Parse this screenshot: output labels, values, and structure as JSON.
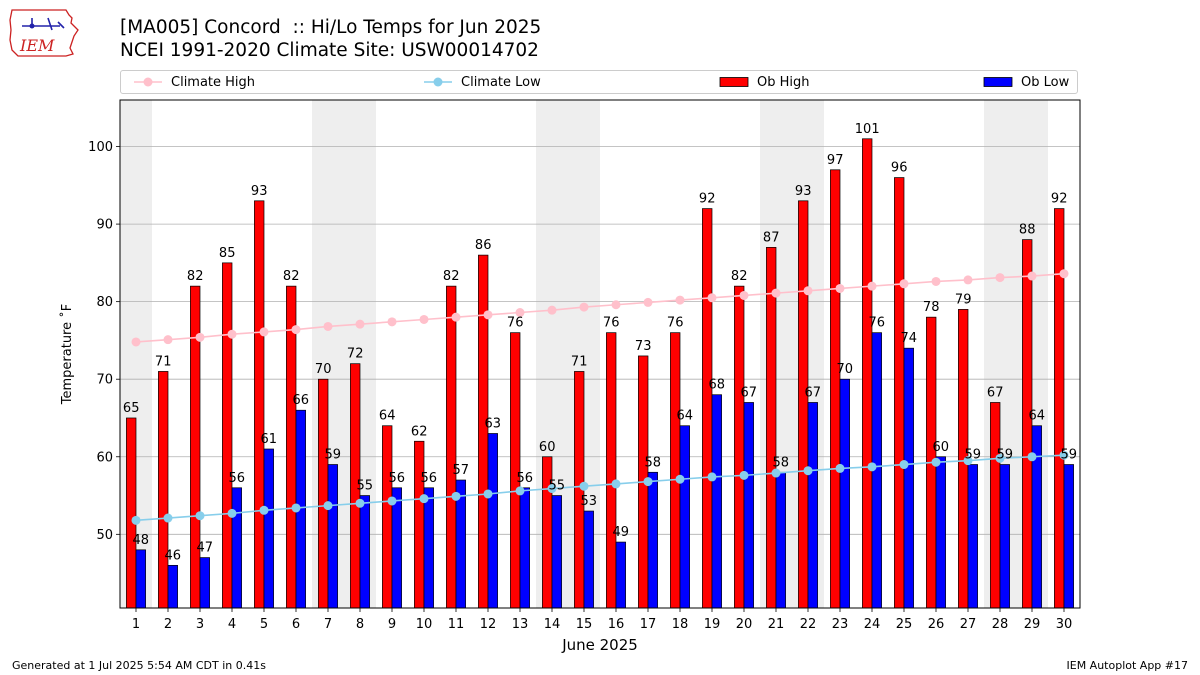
{
  "header": {
    "title_line1": "[MA005] Concord  :: Hi/Lo Temps for Jun 2025",
    "title_line2": "NCEI 1991-2020 Climate Site: USW00014702"
  },
  "logo": {
    "text": "IEM",
    "icon": "iem-iowa-logo"
  },
  "footer": {
    "left": "Generated at 1 Jul 2025 5:54 AM CDT in 0.41s",
    "right": "IEM Autoplot App #17"
  },
  "chart_data": {
    "type": "bar",
    "title": "[MA005] Concord  :: Hi/Lo Temps for Jun 2025",
    "subtitle": "NCEI 1991-2020 Climate Site: USW00014702",
    "xlabel": "June 2025",
    "ylabel": "Temperature ˚F",
    "ylim": [
      40.5,
      106
    ],
    "yticks": [
      50,
      60,
      70,
      80,
      90,
      100
    ],
    "categories": [
      "1",
      "2",
      "3",
      "4",
      "5",
      "6",
      "7",
      "8",
      "9",
      "10",
      "11",
      "12",
      "13",
      "14",
      "15",
      "16",
      "17",
      "18",
      "19",
      "20",
      "21",
      "22",
      "23",
      "24",
      "25",
      "26",
      "27",
      "28",
      "29",
      "30"
    ],
    "grid": true,
    "legend_position": "top",
    "weekend_shading_days": [
      1,
      7,
      8,
      14,
      15,
      21,
      22,
      28,
      29
    ],
    "series": [
      {
        "name": "Ob High",
        "kind": "bar",
        "color": "#ff0000",
        "values": [
          65,
          71,
          82,
          85,
          93,
          82,
          70,
          72,
          64,
          62,
          82,
          86,
          76,
          60,
          71,
          76,
          73,
          76,
          92,
          82,
          87,
          93,
          97,
          101,
          96,
          78,
          79,
          67,
          88,
          92
        ],
        "labels": [
          "65",
          "71",
          "82",
          "85",
          "93",
          "82",
          "70",
          "72",
          "64",
          "62",
          "82",
          "86",
          "76",
          "60",
          "71",
          "76",
          "73",
          "76",
          "92",
          "82",
          "87",
          "93",
          "97",
          "101",
          "96",
          "78",
          "79",
          "67",
          "88",
          "92"
        ]
      },
      {
        "name": "Ob Low",
        "kind": "bar",
        "color": "#0000ff",
        "values": [
          48,
          46,
          47,
          56,
          61,
          66,
          59,
          55,
          56,
          56,
          57,
          63,
          56,
          55,
          53,
          49,
          58,
          64,
          68,
          67,
          58,
          67,
          70,
          76,
          74,
          60,
          59,
          59,
          64,
          59
        ],
        "labels": [
          "48",
          "46",
          "47",
          "56",
          "61",
          "66",
          "59",
          "55",
          "56",
          "56",
          "57",
          "63",
          "56",
          "55",
          "53",
          "49",
          "58",
          "64",
          "68",
          "67",
          "58",
          "67",
          "70",
          "76",
          "74",
          "60",
          "59",
          "59",
          "64",
          "59"
        ]
      },
      {
        "name": "Climate High",
        "kind": "line",
        "color": "#ffc0cb",
        "values": [
          74.8,
          75.1,
          75.4,
          75.8,
          76.1,
          76.4,
          76.8,
          77.1,
          77.4,
          77.7,
          78.0,
          78.3,
          78.6,
          78.9,
          79.3,
          79.6,
          79.9,
          80.2,
          80.5,
          80.8,
          81.1,
          81.4,
          81.7,
          82.0,
          82.3,
          82.6,
          82.8,
          83.1,
          83.3,
          83.6
        ]
      },
      {
        "name": "Climate Low",
        "kind": "line",
        "color": "#87ceeb",
        "values": [
          51.8,
          52.1,
          52.4,
          52.7,
          53.1,
          53.4,
          53.7,
          54.0,
          54.3,
          54.6,
          54.9,
          55.2,
          55.6,
          55.9,
          56.2,
          56.5,
          56.8,
          57.1,
          57.4,
          57.6,
          57.9,
          58.2,
          58.5,
          58.7,
          59.0,
          59.3,
          59.5,
          59.8,
          60.0,
          60.2
        ]
      }
    ]
  }
}
